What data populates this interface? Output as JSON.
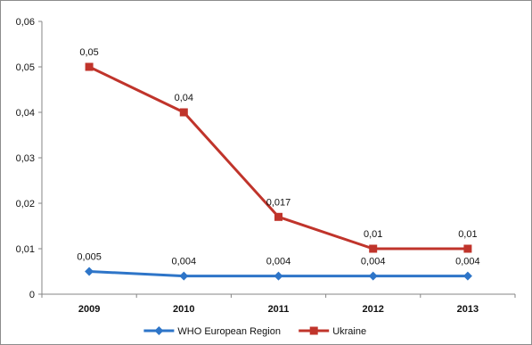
{
  "chart_data": {
    "type": "line",
    "categories": [
      "2009",
      "2010",
      "2011",
      "2012",
      "2013"
    ],
    "ylim": [
      0,
      0.06
    ],
    "y_ticks": [
      "0",
      "0,01",
      "0,02",
      "0,03",
      "0,04",
      "0,05",
      "0,06"
    ],
    "grid": false,
    "legend_position": "bottom",
    "series": [
      {
        "name": "WHO European Region",
        "color": "#2e75c8",
        "marker": "diamond",
        "values": [
          0.005,
          0.004,
          0.004,
          0.004,
          0.004
        ],
        "labels": [
          "0,005",
          "0,004",
          "0,004",
          "0,004",
          "0,004"
        ]
      },
      {
        "name": "Ukraine",
        "color": "#c0342b",
        "marker": "square",
        "values": [
          0.05,
          0.04,
          0.017,
          0.01,
          0.01
        ],
        "labels": [
          "0,05",
          "0,04",
          "0,017",
          "0,01",
          "0,01"
        ]
      }
    ]
  }
}
